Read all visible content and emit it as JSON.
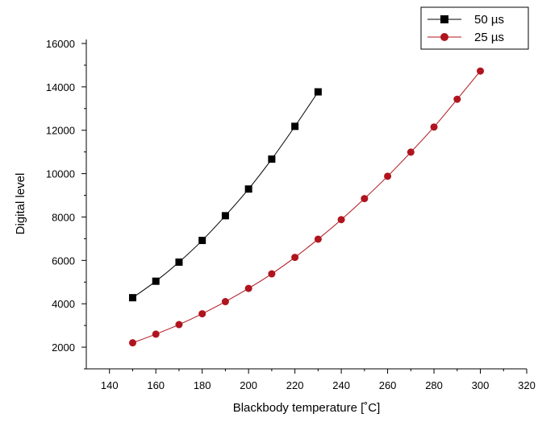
{
  "chart_data": {
    "type": "line",
    "title": "",
    "xlabel": "Blackbody temperature [˚C]",
    "ylabel": "Digital level",
    "xlim": [
      130,
      320
    ],
    "ylim": [
      1000,
      16000
    ],
    "x_ticks": [
      140,
      160,
      180,
      200,
      220,
      240,
      260,
      280,
      300,
      320
    ],
    "y_ticks": [
      2000,
      4000,
      6000,
      8000,
      10000,
      12000,
      14000,
      16000
    ],
    "legend_position": "top-right",
    "series": [
      {
        "name": "50 µs",
        "marker": "square",
        "color": "#000000",
        "x": [
          150,
          160,
          170,
          180,
          190,
          200,
          210,
          220,
          230
        ],
        "y": [
          4280,
          5040,
          5920,
          6920,
          8060,
          9290,
          10670,
          12180,
          13770
        ]
      },
      {
        "name": "25 µs",
        "marker": "circle",
        "color": "#b0141e",
        "x": [
          150,
          160,
          170,
          180,
          190,
          200,
          210,
          220,
          230,
          240,
          250,
          260,
          270,
          280,
          290,
          300
        ],
        "y": [
          2200,
          2600,
          3040,
          3540,
          4100,
          4710,
          5380,
          6140,
          6980,
          7880,
          8850,
          9880,
          10990,
          12150,
          13430,
          14730
        ]
      }
    ]
  }
}
